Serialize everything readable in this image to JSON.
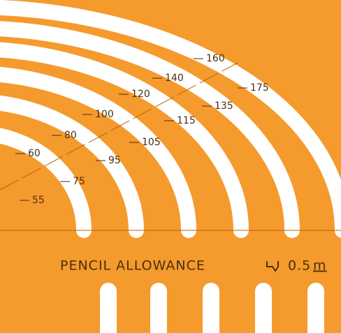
{
  "labels": [
    "160",
    "175",
    "140",
    "135",
    "120",
    "115",
    "100",
    "105",
    "80",
    "95",
    "60",
    "75",
    "55"
  ],
  "caption": "PENCIL ALLOWANCE",
  "allowance": "0.5",
  "unit": "m"
}
